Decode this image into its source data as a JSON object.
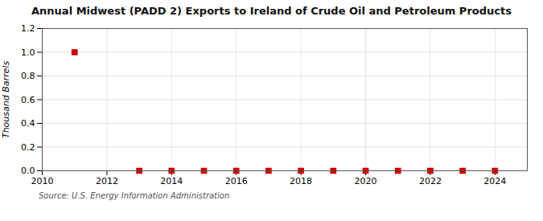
{
  "chart_data": {
    "type": "scatter",
    "title": "Annual Midwest (PADD 2) Exports to Ireland of Crude Oil and Petroleum Products",
    "ylabel": "Thousand Barrels",
    "source": "Source: U.S. Energy Information Administration",
    "x": [
      2011,
      2013,
      2014,
      2015,
      2016,
      2017,
      2018,
      2019,
      2020,
      2021,
      2022,
      2023,
      2024
    ],
    "values": [
      1.0,
      0.0,
      0.0,
      0.0,
      0.0,
      0.0,
      0.0,
      0.0,
      0.0,
      0.0,
      0.0,
      0.0,
      0.0
    ],
    "color": "#cc0000",
    "marker": "square",
    "xlim": [
      2010,
      2025
    ],
    "xticks": [
      2010,
      2012,
      2014,
      2016,
      2018,
      2020,
      2022,
      2024
    ],
    "ylim": [
      0.0,
      1.2
    ],
    "yticks": [
      {
        "value": 0.0,
        "label": "0.0"
      },
      0.2,
      0.4,
      0.6,
      0.8,
      {
        "value": 1.0,
        "label": "1.0"
      },
      1.2
    ],
    "grid": true
  }
}
